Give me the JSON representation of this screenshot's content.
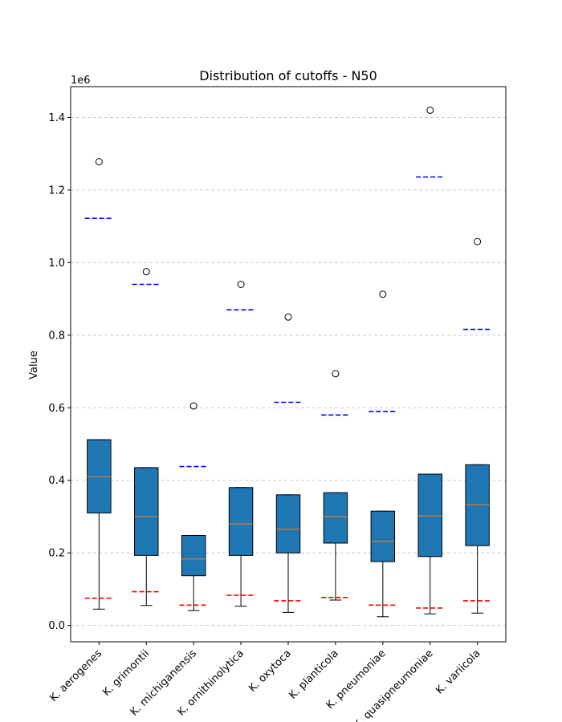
{
  "chart_data": {
    "type": "box",
    "title": "Distribution of cutoffs - N50",
    "xlabel": "",
    "ylabel": "Value",
    "y_offset_label": "1e6",
    "ylim": [
      -45000,
      1485000
    ],
    "yticks": [
      0,
      200000,
      400000,
      600000,
      800000,
      1000000,
      1200000,
      1400000
    ],
    "ytick_labels": [
      "0.0",
      "0.2",
      "0.4",
      "0.6",
      "0.8",
      "1.0",
      "1.2",
      "1.4"
    ],
    "grid": "horizontal-dashed",
    "colors": {
      "box_fill": "#1f77b4",
      "median": "#ff7f0e",
      "lower_cutoff": "#ff0000",
      "upper_cutoff": "#0000ff",
      "grid": "#cccccc"
    },
    "categories": [
      "K. aerogenes",
      "K. grimontii",
      "K. michiganensis",
      "K. ornithinolytica",
      "K. oxytoca",
      "K. planticola",
      "K. pneumoniae",
      "K. quasipneumoniae",
      "K. variicola"
    ],
    "boxes": [
      {
        "whislo": 45000,
        "q1": 310000,
        "med": 410000,
        "q3": 512000,
        "whishi": 512000,
        "fliers": [
          1278000
        ],
        "lower_cutoff": 75000,
        "upper_cutoff": 1122000
      },
      {
        "whislo": 55000,
        "q1": 193000,
        "med": 300000,
        "q3": 435000,
        "whishi": 435000,
        "fliers": [
          975000
        ],
        "lower_cutoff": 93000,
        "upper_cutoff": 940000
      },
      {
        "whislo": 41000,
        "q1": 137000,
        "med": 183000,
        "q3": 248000,
        "whishi": 248000,
        "fliers": [
          605000
        ],
        "lower_cutoff": 56000,
        "upper_cutoff": 438000
      },
      {
        "whislo": 53000,
        "q1": 193000,
        "med": 280000,
        "q3": 380000,
        "whishi": 380000,
        "fliers": [
          940000
        ],
        "lower_cutoff": 83000,
        "upper_cutoff": 870000
      },
      {
        "whislo": 36000,
        "q1": 200000,
        "med": 265000,
        "q3": 360000,
        "whishi": 360000,
        "fliers": [
          850000
        ],
        "lower_cutoff": 68000,
        "upper_cutoff": 615000
      },
      {
        "whislo": 70000,
        "q1": 227000,
        "med": 300000,
        "q3": 366000,
        "whishi": 366000,
        "fliers": [
          694000
        ],
        "lower_cutoff": 77000,
        "upper_cutoff": 580000
      },
      {
        "whislo": 24000,
        "q1": 176000,
        "med": 232000,
        "q3": 315000,
        "whishi": 315000,
        "fliers": [
          913000
        ],
        "lower_cutoff": 56000,
        "upper_cutoff": 590000
      },
      {
        "whislo": 32000,
        "q1": 190000,
        "med": 302000,
        "q3": 417000,
        "whishi": 417000,
        "fliers": [
          1420000
        ],
        "lower_cutoff": 48000,
        "upper_cutoff": 1236000
      },
      {
        "whislo": 34000,
        "q1": 220000,
        "med": 333000,
        "q3": 443000,
        "whishi": 443000,
        "fliers": [
          1058000
        ],
        "lower_cutoff": 68000,
        "upper_cutoff": 816000
      }
    ]
  }
}
